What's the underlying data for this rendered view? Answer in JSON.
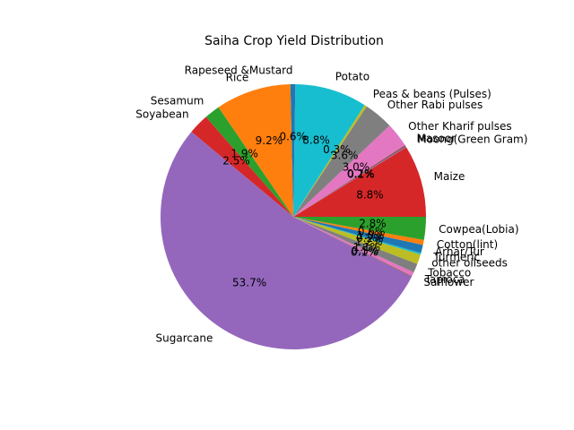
{
  "chart_data": {
    "type": "pie",
    "title": "Saiha Crop Yield Distribution",
    "autopct_decimals": 1,
    "start_angle_deg": 0,
    "direction": "counterclockwise",
    "slices": [
      {
        "label": "Maize",
        "value": 8.8,
        "color": "#d62728"
      },
      {
        "label": "Moong(Green Gram)",
        "value": 0.1,
        "color": "#9467bd"
      },
      {
        "label": "Masoor",
        "value": 0.2,
        "color": "#8c564b"
      },
      {
        "label": "Other Kharif pulses",
        "value": 3.0,
        "color": "#e377c2"
      },
      {
        "label": "Other Rabi pulses",
        "value": 3.6,
        "color": "#7f7f7f"
      },
      {
        "label": "Peas & beans (Pulses)",
        "value": 0.3,
        "color": "#bcbd22"
      },
      {
        "label": "Potato",
        "value": 8.8,
        "color": "#17becf"
      },
      {
        "label": "Rapeseed &Mustard",
        "value": 0.6,
        "color": "#1f77b4"
      },
      {
        "label": "Rice",
        "value": 9.2,
        "color": "#ff7f0e"
      },
      {
        "label": "Sesamum",
        "value": 1.9,
        "color": "#2ca02c"
      },
      {
        "label": "Soyabean",
        "value": 2.5,
        "color": "#d62728"
      },
      {
        "label": "Sugarcane",
        "value": 53.7,
        "color": "#9467bd"
      },
      {
        "label": "Safflower",
        "value": 0.1,
        "color": "#8c564b"
      },
      {
        "label": "Tapioca",
        "value": 0.5,
        "color": "#e377c2"
      },
      {
        "label": "Tobacco",
        "value": 1.1,
        "color": "#7f7f7f"
      },
      {
        "label": "other oilseeds",
        "value": 1.2,
        "color": "#bcbd22"
      },
      {
        "label": "Turmeric",
        "value": 0.2,
        "color": "#17becf"
      },
      {
        "label": "Arhar/Tur",
        "value": 1.0,
        "color": "#1f77b4"
      },
      {
        "label": "Cotton(lint)",
        "value": 0.6,
        "color": "#ff7f0e"
      },
      {
        "label": "Cowpea(Lobia)",
        "value": 2.8,
        "color": "#2ca02c"
      }
    ]
  }
}
